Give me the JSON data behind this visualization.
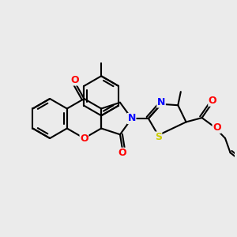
{
  "background_color": "#ebebeb",
  "bond_color": "#000000",
  "bond_width": 1.5,
  "atom_colors": {
    "O": "#ff0000",
    "N": "#0000ff",
    "S": "#cccc00",
    "C": "#000000"
  },
  "font_size": 8.5,
  "figsize": [
    3.0,
    3.0
  ],
  "dpi": 100
}
